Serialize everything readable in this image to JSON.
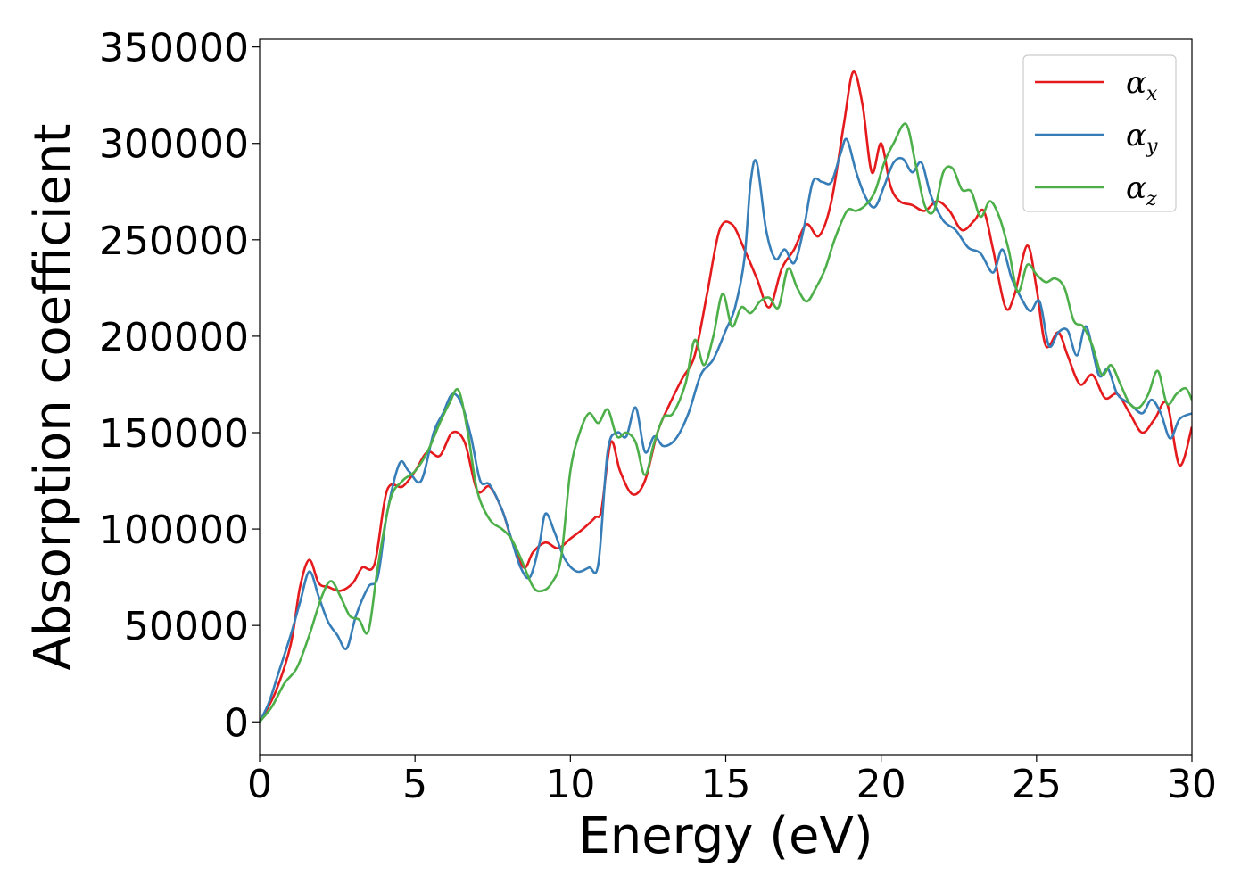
{
  "chart_data": {
    "type": "line",
    "xlabel": "Energy (eV)",
    "ylabel": "Absorption coefficient",
    "xlim": [
      0,
      30
    ],
    "ylim": [
      -17000,
      354000
    ],
    "xticks": [
      0,
      5,
      10,
      15,
      20,
      25,
      30
    ],
    "yticks": [
      0,
      50000,
      100000,
      150000,
      200000,
      250000,
      300000,
      350000
    ],
    "grid": false,
    "legend_position": "top-right",
    "series": [
      {
        "name": "αx",
        "symbol": "α",
        "subscript": "x",
        "color": "#e41a1c",
        "x": [
          0,
          0.5,
          1.0,
          1.3,
          1.6,
          1.9,
          2.2,
          2.6,
          3.0,
          3.3,
          3.7,
          4.1,
          4.6,
          5.0,
          5.4,
          5.8,
          6.2,
          6.6,
          7.0,
          7.4,
          7.8,
          8.1,
          8.5,
          8.8,
          9.2,
          9.6,
          10.0,
          10.4,
          10.8,
          11.0,
          11.3,
          11.6,
          12.0,
          12.4,
          12.8,
          13.2,
          13.6,
          14.0,
          14.4,
          14.8,
          15.2,
          15.6,
          16.0,
          16.4,
          16.8,
          17.2,
          17.6,
          18.0,
          18.4,
          18.8,
          19.1,
          19.4,
          19.7,
          20.0,
          20.3,
          20.6,
          21.0,
          21.4,
          21.8,
          22.2,
          22.6,
          23.0,
          23.3,
          23.6,
          24.0,
          24.3,
          24.7,
          25.0,
          25.3,
          25.7,
          26.0,
          26.4,
          26.8,
          27.2,
          27.6,
          28.0,
          28.4,
          28.8,
          29.2,
          29.6,
          30.0
        ],
        "values": [
          0,
          15000,
          40000,
          70000,
          84000,
          72000,
          70000,
          68000,
          72000,
          80000,
          82000,
          120000,
          122000,
          130000,
          140000,
          138000,
          150000,
          145000,
          120000,
          122000,
          110000,
          95000,
          80000,
          88000,
          93000,
          90000,
          95000,
          100000,
          106000,
          110000,
          145000,
          130000,
          118000,
          125000,
          150000,
          165000,
          178000,
          190000,
          222000,
          255000,
          258000,
          245000,
          230000,
          215000,
          235000,
          245000,
          258000,
          252000,
          270000,
          310000,
          337000,
          320000,
          285000,
          300000,
          278000,
          270000,
          268000,
          265000,
          270000,
          265000,
          255000,
          260000,
          265000,
          245000,
          215000,
          222000,
          247000,
          225000,
          195000,
          202000,
          190000,
          175000,
          180000,
          168000,
          170000,
          160000,
          150000,
          157000,
          165000,
          133000,
          153000
        ]
      },
      {
        "name": "αy",
        "symbol": "α",
        "subscript": "y",
        "color": "#377eb8",
        "x": [
          0,
          0.3,
          0.6,
          1.0,
          1.3,
          1.6,
          1.9,
          2.2,
          2.5,
          2.8,
          3.1,
          3.5,
          3.8,
          4.1,
          4.5,
          4.8,
          5.2,
          5.6,
          5.9,
          6.2,
          6.5,
          6.8,
          7.1,
          7.4,
          7.8,
          8.1,
          8.4,
          8.7,
          9.0,
          9.2,
          9.5,
          9.8,
          10.2,
          10.6,
          10.9,
          11.2,
          11.5,
          11.8,
          12.1,
          12.4,
          12.7,
          13.0,
          13.4,
          13.8,
          14.2,
          14.6,
          15.0,
          15.3,
          15.6,
          15.8,
          16.0,
          16.3,
          16.6,
          16.9,
          17.2,
          17.5,
          17.8,
          18.1,
          18.4,
          18.7,
          18.9,
          19.2,
          19.5,
          19.8,
          20.1,
          20.4,
          20.7,
          21.0,
          21.3,
          21.6,
          22.0,
          22.4,
          22.8,
          23.2,
          23.6,
          23.9,
          24.2,
          24.5,
          24.8,
          25.1,
          25.4,
          25.7,
          26.0,
          26.3,
          26.6,
          27.0,
          27.3,
          27.6,
          28.0,
          28.4,
          28.7,
          29.0,
          29.3,
          29.6,
          30.0
        ],
        "values": [
          0,
          10000,
          25000,
          45000,
          62000,
          78000,
          65000,
          52000,
          45000,
          38000,
          55000,
          70000,
          75000,
          108000,
          134000,
          130000,
          125000,
          150000,
          160000,
          170000,
          165000,
          148000,
          125000,
          123000,
          110000,
          95000,
          80000,
          75000,
          92000,
          108000,
          98000,
          85000,
          78000,
          80000,
          82000,
          140000,
          150000,
          148000,
          163000,
          140000,
          148000,
          143000,
          147000,
          160000,
          180000,
          188000,
          203000,
          215000,
          240000,
          280000,
          290000,
          255000,
          240000,
          245000,
          238000,
          255000,
          280000,
          280000,
          280000,
          295000,
          302000,
          285000,
          272000,
          267000,
          278000,
          290000,
          292000,
          285000,
          290000,
          273000,
          260000,
          255000,
          246000,
          243000,
          233000,
          245000,
          230000,
          220000,
          213000,
          218000,
          195000,
          202000,
          203000,
          190000,
          205000,
          180000,
          183000,
          170000,
          165000,
          160000,
          167000,
          160000,
          147000,
          157000,
          160000
        ]
      },
      {
        "name": "αz",
        "symbol": "α",
        "subscript": "z",
        "color": "#4daf4a",
        "x": [
          0,
          0.4,
          0.8,
          1.2,
          1.6,
          2.0,
          2.3,
          2.6,
          2.9,
          3.2,
          3.5,
          3.8,
          4.2,
          4.6,
          5.0,
          5.4,
          5.8,
          6.1,
          6.4,
          6.7,
          7.0,
          7.4,
          7.8,
          8.1,
          8.4,
          8.8,
          9.1,
          9.4,
          9.7,
          10.0,
          10.3,
          10.6,
          10.9,
          11.2,
          11.5,
          11.8,
          12.1,
          12.4,
          12.7,
          13.0,
          13.3,
          13.7,
          14.0,
          14.3,
          14.6,
          14.9,
          15.2,
          15.5,
          15.8,
          16.1,
          16.4,
          16.7,
          17.0,
          17.3,
          17.6,
          17.9,
          18.2,
          18.5,
          18.9,
          19.2,
          19.5,
          19.8,
          20.1,
          20.4,
          20.8,
          21.1,
          21.4,
          21.7,
          22.0,
          22.3,
          22.6,
          22.9,
          23.2,
          23.5,
          23.8,
          24.1,
          24.4,
          24.7,
          25.0,
          25.3,
          25.6,
          25.9,
          26.2,
          26.5,
          26.8,
          27.1,
          27.4,
          27.7,
          28.0,
          28.3,
          28.6,
          28.9,
          29.2,
          29.5,
          29.8,
          30.0
        ],
        "values": [
          0,
          8000,
          20000,
          28000,
          45000,
          65000,
          73000,
          65000,
          55000,
          53000,
          47000,
          80000,
          115000,
          125000,
          130000,
          140000,
          155000,
          165000,
          172000,
          150000,
          120000,
          105000,
          100000,
          95000,
          85000,
          70000,
          68000,
          72000,
          85000,
          130000,
          150000,
          160000,
          155000,
          162000,
          148000,
          150000,
          145000,
          128000,
          145000,
          158000,
          160000,
          175000,
          198000,
          185000,
          200000,
          222000,
          205000,
          215000,
          212000,
          218000,
          220000,
          215000,
          235000,
          225000,
          218000,
          225000,
          235000,
          250000,
          265000,
          265000,
          268000,
          275000,
          290000,
          300000,
          310000,
          290000,
          268000,
          265000,
          285000,
          287000,
          276000,
          275000,
          262000,
          270000,
          262000,
          245000,
          223000,
          237000,
          232000,
          228000,
          230000,
          225000,
          208000,
          205000,
          195000,
          180000,
          185000,
          175000,
          165000,
          163000,
          170000,
          182000,
          165000,
          170000,
          173000,
          167000
        ]
      }
    ]
  }
}
